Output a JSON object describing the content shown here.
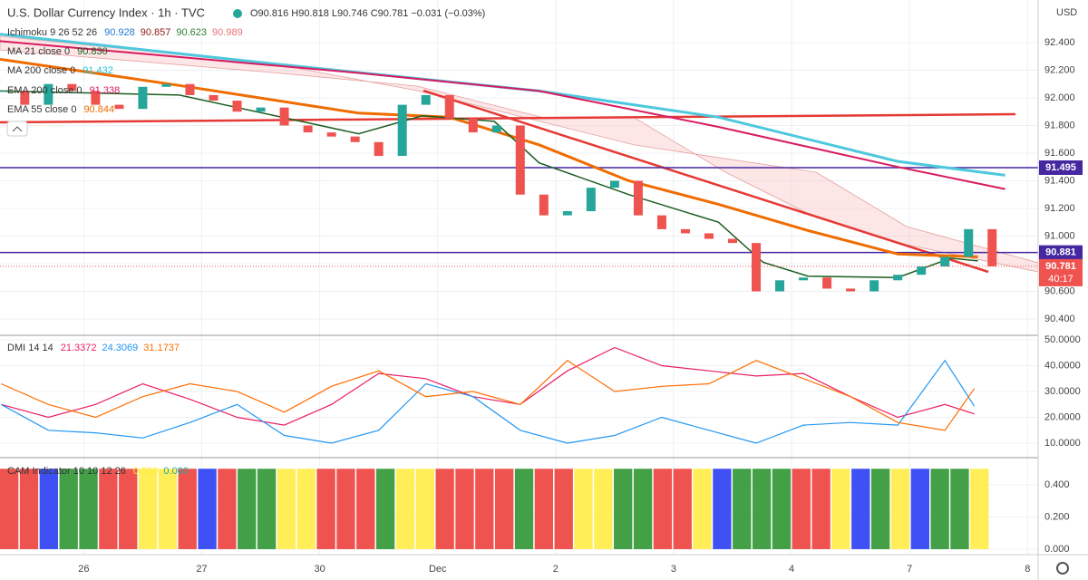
{
  "header": {
    "symbol": "U.S. Dollar Currency Index · 1h · TVC",
    "ohlc": "O90.816 H90.818 L90.746 C90.781 −0.031 (−0.03%)"
  },
  "indicators": [
    {
      "name": "Ichimoku 9 26 52 26",
      "values": [
        "90.928",
        "90.857",
        "90.623",
        "90.989"
      ],
      "colors": [
        "#1f77d0",
        "#8b1a1a",
        "#2e7d32",
        "#e57373"
      ]
    },
    {
      "name": "MA 21 close 0",
      "values": [
        "90.830"
      ],
      "colors": [
        "#1b5e20"
      ]
    },
    {
      "name": "MA 200 close 0",
      "values": [
        "91.432"
      ],
      "colors": [
        "#26c6da"
      ]
    },
    {
      "name": "EMA 200 close 0",
      "values": [
        "91.338"
      ],
      "colors": [
        "#d81b60"
      ]
    },
    {
      "name": "EMA 55 close 0",
      "values": [
        "90.844"
      ],
      "colors": [
        "#ef6c00"
      ]
    },
    {
      "name": "DMI 14 14",
      "values": [
        "21.3372",
        "24.3069",
        "31.1737"
      ],
      "colors": [
        "#e91e63",
        "#2196f3",
        "#ff6d00"
      ]
    },
    {
      "name": "CAM Indicator 10 10 12 26",
      "values": [
        "0.500",
        "0.000"
      ],
      "colors": [
        "#ffeb3b",
        "#26a69a"
      ]
    }
  ],
  "chart_data": [
    {
      "type": "candlestick",
      "axis_unit": "USD",
      "x": [
        -0.7,
        -0.5,
        -0.3,
        -0.1,
        0.1,
        0.3,
        0.5,
        0.7,
        0.9,
        1.1,
        1.3,
        1.5,
        1.7,
        1.9,
        2.1,
        2.3,
        2.5,
        2.7,
        2.9,
        3.1,
        3.3,
        3.5,
        3.7,
        3.9,
        4.1,
        4.3,
        4.5,
        4.7,
        4.9,
        5.1,
        5.3,
        5.5,
        5.7,
        5.9,
        6.1,
        6.3,
        6.5,
        6.7,
        6.9,
        7.1,
        7.3,
        7.5,
        7.7
      ],
      "values": [
        92.05,
        91.95,
        92.1,
        92.05,
        91.95,
        91.92,
        92.08,
        92.1,
        92.02,
        91.98,
        91.9,
        91.93,
        91.8,
        91.75,
        91.72,
        91.68,
        91.58,
        91.95,
        92.02,
        91.85,
        91.75,
        91.8,
        91.3,
        91.15,
        91.18,
        91.35,
        91.4,
        91.15,
        91.05,
        91.02,
        90.98,
        90.95,
        90.6,
        90.68,
        90.7,
        90.62,
        90.6,
        90.68,
        90.72,
        90.78,
        90.85,
        91.05,
        90.781
      ],
      "up_color": "#26a69a",
      "down_color": "#ef5350",
      "overlays": [
        {
          "color": "#4dc8dc",
          "width": 3,
          "x": [
            -0.71,
            1.57,
            3.86,
            5.38,
            6.9,
            7.81
          ],
          "values": [
            92.46,
            92.25,
            92.05,
            91.86,
            91.54,
            91.44
          ]
        },
        {
          "color": "#d81b60",
          "width": 2,
          "x": [
            -0.71,
            2.33,
            3.86,
            5.38,
            6.9,
            7.81
          ],
          "values": [
            92.41,
            92.18,
            92.05,
            91.79,
            91.5,
            91.34
          ]
        },
        {
          "color": "#ef6c00",
          "width": 3,
          "x": [
            -0.71,
            0.81,
            2.33,
            3.1,
            3.86,
            4.62,
            5.38,
            6.14,
            6.9,
            7.58
          ],
          "values": [
            92.28,
            92.09,
            91.89,
            91.86,
            91.66,
            91.4,
            91.23,
            91.04,
            90.87,
            90.85
          ]
        },
        {
          "color": "#1b5e20",
          "width": 1.5,
          "x": [
            -0.71,
            0.81,
            2.33,
            2.87,
            3.48,
            3.86,
            4.62,
            5.38,
            5.76,
            6.14,
            6.9,
            7.35,
            7.58
          ],
          "values": [
            92.05,
            92.02,
            91.74,
            91.87,
            91.83,
            91.53,
            91.3,
            91.1,
            90.81,
            90.71,
            90.7,
            90.84,
            90.82
          ]
        }
      ],
      "levels": [
        {
          "value": 91.495,
          "color": "#4527a0"
        },
        {
          "value": 90.881,
          "color": "#4527a0"
        }
      ],
      "last": {
        "value": 90.781,
        "color": "#ef5350",
        "countdown": "40:17"
      },
      "xlim": [
        -0.71,
        8.09
      ],
      "ylim": [
        90.282,
        92.708
      ],
      "xticks": [
        {
          "value": 0,
          "label": "26"
        },
        {
          "value": 1,
          "label": "27"
        },
        {
          "value": 2,
          "label": "30"
        },
        {
          "value": 3,
          "label": "Dec"
        },
        {
          "value": 4,
          "label": "2"
        },
        {
          "value": 5,
          "label": "3"
        },
        {
          "value": 6,
          "label": "4"
        },
        {
          "value": 7,
          "label": "7"
        },
        {
          "value": 8,
          "label": "8"
        }
      ],
      "yticks": [
        {
          "value": 92.4,
          "label": "92.400"
        },
        {
          "value": 92.2,
          "label": "92.200"
        },
        {
          "value": 92.0,
          "label": "92.000"
        },
        {
          "value": 91.8,
          "label": "91.800"
        },
        {
          "value": 91.6,
          "label": "91.600"
        },
        {
          "value": 91.4,
          "label": "91.400"
        },
        {
          "value": 91.2,
          "label": "91.200"
        },
        {
          "value": 91.0,
          "label": "91.000"
        },
        {
          "value": 90.8,
          "label": "90.800"
        },
        {
          "value": 90.6,
          "label": "90.600"
        },
        {
          "value": 90.4,
          "label": "90.400"
        }
      ],
      "grid": true
    },
    {
      "type": "line",
      "xlim": [
        -0.71,
        8.09
      ],
      "ylim": [
        4.4,
        51.75
      ],
      "x": [
        -0.7,
        -0.3,
        0.1,
        0.5,
        0.9,
        1.3,
        1.7,
        2.1,
        2.5,
        2.9,
        3.3,
        3.7,
        4.1,
        4.5,
        4.9,
        5.3,
        5.7,
        6.1,
        6.5,
        6.9,
        7.3,
        7.55
      ],
      "series": [
        {
          "color": "#e91e63",
          "values": [
            25,
            20,
            25,
            33,
            27,
            20,
            17,
            25,
            37,
            35,
            28,
            25,
            38,
            47,
            40,
            38,
            36,
            37,
            28,
            20,
            25,
            21.3372
          ]
        },
        {
          "color": "#2196f3",
          "values": [
            25,
            15,
            14,
            12,
            18,
            25,
            13,
            10,
            15,
            33,
            28,
            15,
            10,
            13,
            20,
            15,
            10,
            17,
            18,
            17,
            42,
            24.3069
          ]
        },
        {
          "color": "#ff6d00",
          "values": [
            33,
            25,
            20,
            28,
            33,
            30,
            22,
            32,
            38,
            28,
            30,
            25,
            42,
            30,
            32,
            33,
            42,
            35,
            28,
            18,
            15,
            31.1737
          ]
        }
      ],
      "yticks": [
        {
          "value": 50,
          "label": "50.0000"
        },
        {
          "value": 40,
          "label": "40.0000"
        },
        {
          "value": 30,
          "label": "30.0000"
        },
        {
          "value": 20,
          "label": "20.0000"
        },
        {
          "value": 10,
          "label": "10.0000"
        }
      ],
      "grid": true
    },
    {
      "type": "bar",
      "ylim": [
        -0.034,
        0.569
      ],
      "values": [
        0.5,
        0.5,
        0.5,
        0.5,
        0.5,
        0.5,
        0.5,
        0.5,
        0.5,
        0.5,
        0.5,
        0.5,
        0.5,
        0.5,
        0.5,
        0.5,
        0.5,
        0.5,
        0.5,
        0.5,
        0.5,
        0.5,
        0.5,
        0.5,
        0.5,
        0.5,
        0.5,
        0.5,
        0.5,
        0.5,
        0.5,
        0.5,
        0.5,
        0.5,
        0.5,
        0.5,
        0.5,
        0.5,
        0.5,
        0.5,
        0.5,
        0.5,
        0.5,
        0.5,
        0.5,
        0.5,
        0.5,
        0.5,
        0.5,
        0.5
      ],
      "colors": [
        "#ef5350",
        "#ef5350",
        "#3f51f5",
        "#43a047",
        "#43a047",
        "#ef5350",
        "#ef5350",
        "#ffee58",
        "#ffee58",
        "#ef5350",
        "#3f51f5",
        "#ef5350",
        "#43a047",
        "#43a047",
        "#ffee58",
        "#ffee58",
        "#ef5350",
        "#ef5350",
        "#ef5350",
        "#43a047",
        "#ffee58",
        "#ffee58",
        "#ef5350",
        "#ef5350",
        "#ef5350",
        "#ef5350",
        "#43a047",
        "#ef5350",
        "#ef5350",
        "#ffee58",
        "#ffee58",
        "#43a047",
        "#43a047",
        "#ef5350",
        "#ef5350",
        "#ffee58",
        "#3f51f5",
        "#43a047",
        "#43a047",
        "#43a047",
        "#ef5350",
        "#ef5350",
        "#ffee58",
        "#3f51f5",
        "#43a047",
        "#ffee58",
        "#3f51f5",
        "#43a047",
        "#43a047",
        "#ffee58"
      ],
      "yticks": [
        {
          "value": 0.4,
          "label": "0.400"
        },
        {
          "value": 0.2,
          "label": "0.200"
        },
        {
          "value": 0,
          "label": "0.000"
        }
      ],
      "grid": true
    }
  ]
}
